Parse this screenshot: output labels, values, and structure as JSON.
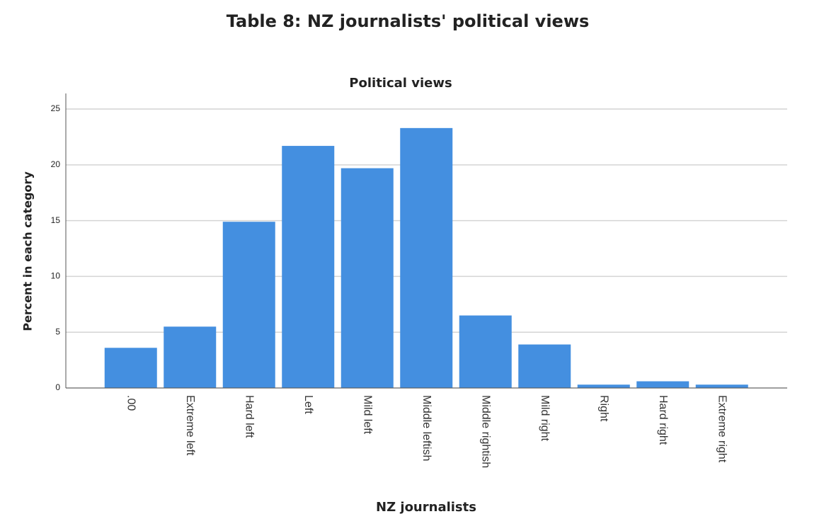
{
  "chart_data": {
    "type": "bar",
    "heading": "Table 8: NZ journalists' political views",
    "title": "Political views",
    "x_label": "NZ journalists",
    "y_label": "Percent in each category",
    "categories": [
      ".00",
      "Extreme left",
      "Hard left",
      "Left",
      "Mild left",
      "Middle leftish",
      "Middle rightish",
      "Mild right",
      "Right",
      "Hard right",
      "Extreme right"
    ],
    "values": [
      3.6,
      5.5,
      14.9,
      21.7,
      19.7,
      23.3,
      6.5,
      3.9,
      0.3,
      0.6,
      0.3
    ],
    "color": "#448fe0",
    "ylim": [
      0,
      26.4
    ],
    "yticks": [
      0,
      5,
      10,
      15,
      20,
      25
    ],
    "grid": true
  }
}
